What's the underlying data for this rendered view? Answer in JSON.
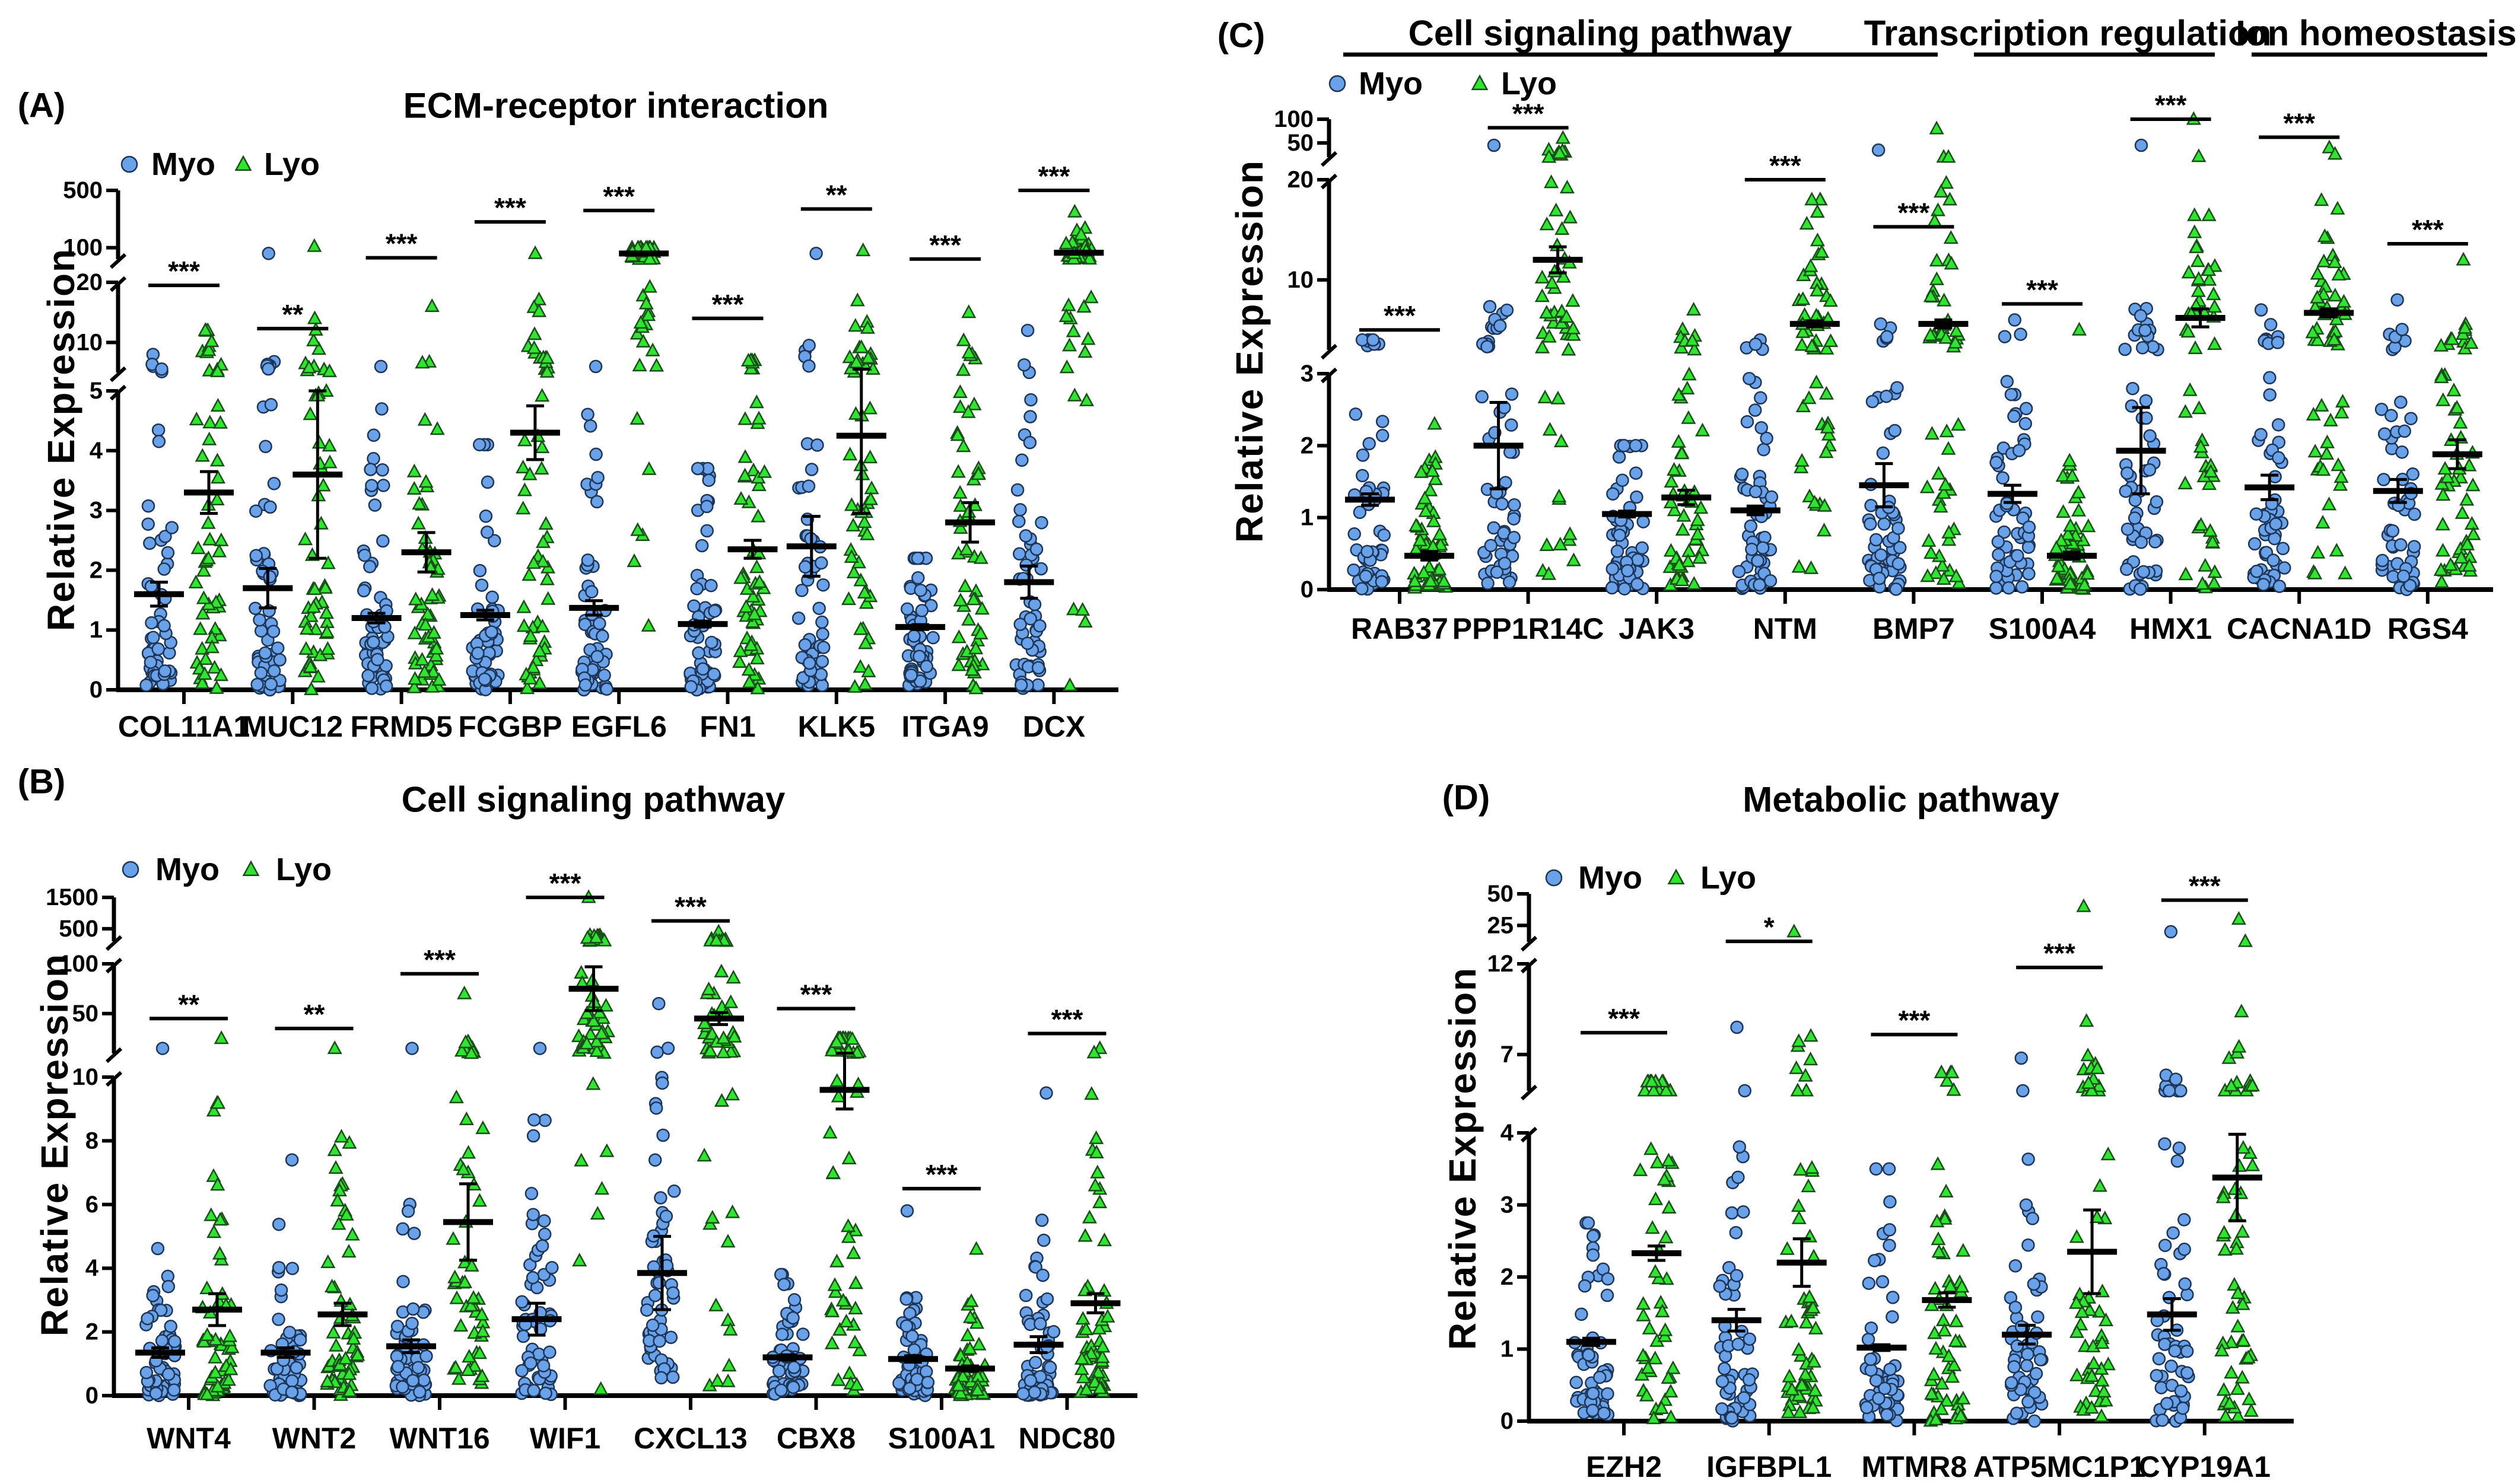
{
  "chart_data": [
    {
      "type": "scatter",
      "panel_label": "(A)",
      "title": "ECM-receptor interaction",
      "ylabel": "Relative Expression",
      "xlabel": "",
      "legend": [
        "Myo",
        "Lyo"
      ],
      "legend_placement": "top-left",
      "colors": {
        "Myo": "#6aa2ea",
        "Lyo": "#2ee62e"
      },
      "y_segments": [
        [
          0,
          5
        ],
        [
          5,
          20
        ],
        [
          20,
          500
        ]
      ],
      "y_ticks": [
        0,
        1,
        2,
        3,
        4,
        5,
        10,
        20,
        100,
        500
      ],
      "genes": [
        {
          "gene": "COL11A1",
          "sig": "***",
          "sig_level": 19.5,
          "myo": {
            "mean": 1.6,
            "sem": 0.2,
            "max": 8
          },
          "lyo": {
            "mean": 3.3,
            "sem": 0.35,
            "max": 12
          }
        },
        {
          "gene": "MUC12",
          "sig": "**",
          "sig_level": 12.3,
          "myo": {
            "mean": 1.7,
            "sem": 0.33,
            "max": 60
          },
          "lyo": {
            "mean": 3.6,
            "sem": 1.4,
            "max": 110
          }
        },
        {
          "gene": "FRMD5",
          "sig": "***",
          "sig_level": 30,
          "myo": {
            "mean": 1.2,
            "sem": 0.08,
            "max": 6
          },
          "lyo": {
            "mean": 2.3,
            "sem": 0.33,
            "max": 16
          }
        },
        {
          "gene": "FCGBP",
          "sig": "***",
          "sig_level": 280,
          "myo": {
            "mean": 1.25,
            "sem": 0.08,
            "max": 4.1
          },
          "lyo": {
            "mean": 4.3,
            "sem": 0.45,
            "max": 60
          }
        },
        {
          "gene": "EGFL6",
          "sig": "***",
          "sig_level": 360,
          "myo": {
            "mean": 1.37,
            "sem": 0.12,
            "max": 6
          },
          "lyo": {
            "mean": 60,
            "sem": 5,
            "max": 100
          }
        },
        {
          "gene": "FN1",
          "sig": "***",
          "sig_level": 14,
          "myo": {
            "mean": 1.1,
            "sem": 0.05,
            "max": 3.7
          },
          "lyo": {
            "mean": 2.35,
            "sem": 0.15,
            "max": 7
          }
        },
        {
          "gene": "KLK5",
          "sig": "**",
          "sig_level": 370,
          "myo": {
            "mean": 2.4,
            "sem": 0.5,
            "max": 60
          },
          "lyo": {
            "mean": 4.25,
            "sem": 1.3,
            "max": 80
          }
        },
        {
          "gene": "ITGA9",
          "sig": "***",
          "sig_level": 21,
          "myo": {
            "mean": 1.05,
            "sem": 0.04,
            "max": 2.2
          },
          "lyo": {
            "mean": 2.8,
            "sem": 0.33,
            "max": 15
          }
        },
        {
          "gene": "DCX",
          "sig": "***",
          "sig_level": 560,
          "myo": {
            "mean": 1.8,
            "sem": 0.27,
            "max": 12
          },
          "lyo": {
            "mean": 65,
            "sem": 8,
            "max": 350
          }
        }
      ]
    },
    {
      "type": "scatter",
      "panel_label": "(B)",
      "title": "Cell signaling pathway",
      "ylabel": "Relative Expression",
      "xlabel": "",
      "legend": [
        "Myo",
        "Lyo"
      ],
      "legend_placement": "top-left",
      "colors": {
        "Myo": "#6aa2ea",
        "Lyo": "#2ee62e"
      },
      "y_segments": [
        [
          0,
          10
        ],
        [
          10,
          100
        ],
        [
          100,
          1500
        ]
      ],
      "y_ticks": [
        0,
        2,
        4,
        6,
        8,
        10,
        50,
        100,
        500,
        1500
      ],
      "genes": [
        {
          "gene": "WNT4",
          "sig": "**",
          "sig_level": 45,
          "myo": {
            "mean": 1.35,
            "sem": 0.15,
            "max": 15
          },
          "lyo": {
            "mean": 2.7,
            "sem": 0.5,
            "max": 25
          }
        },
        {
          "gene": "WNT2",
          "sig": "**",
          "sig_level": 35,
          "myo": {
            "mean": 1.35,
            "sem": 0.15,
            "max": 7.4
          },
          "lyo": {
            "mean": 2.55,
            "sem": 0.35,
            "max": 15
          }
        },
        {
          "gene": "WNT16",
          "sig": "***",
          "sig_level": 90,
          "myo": {
            "mean": 1.55,
            "sem": 0.2,
            "max": 15
          },
          "lyo": {
            "mean": 5.45,
            "sem": 1.2,
            "max": 70
          }
        },
        {
          "gene": "WIF1",
          "sig": "***",
          "sig_level": 1550,
          "myo": {
            "mean": 2.4,
            "sem": 0.5,
            "max": 15
          },
          "lyo": {
            "mean": 75,
            "sem": 22,
            "max": 1500
          }
        },
        {
          "gene": "CXCL13",
          "sig": "***",
          "sig_level": 750,
          "myo": {
            "mean": 3.85,
            "sem": 1.15,
            "max": 60
          },
          "lyo": {
            "mean": 45,
            "sem": 6,
            "max": 400
          }
        },
        {
          "gene": "CBX8",
          "sig": "***",
          "sig_level": 55,
          "myo": {
            "mean": 1.2,
            "sem": 0.08,
            "max": 3.8
          },
          "lyo": {
            "mean": 9.6,
            "sem": 0.6,
            "max": 25
          }
        },
        {
          "gene": "S100A1",
          "sig": "***",
          "sig_level": 6.5,
          "myo": {
            "mean": 1.15,
            "sem": 0.1,
            "max": 5.8
          },
          "lyo": {
            "mean": 0.85,
            "sem": 0.08,
            "max": 4.6
          }
        },
        {
          "gene": "NDC80",
          "sig": "***",
          "sig_level": 30,
          "myo": {
            "mean": 1.6,
            "sem": 0.25,
            "max": 9.5
          },
          "lyo": {
            "mean": 2.9,
            "sem": 0.3,
            "max": 15
          }
        }
      ]
    },
    {
      "type": "scatter",
      "panel_label": "(C)",
      "title": "",
      "group_headers": [
        {
          "label": "Cell signaling pathway"
        },
        {
          "label": "Transcription regulation"
        },
        {
          "label": "Ion homeostasis"
        }
      ],
      "ylabel": "Relative Expression",
      "xlabel": "",
      "legend": [
        "Myo",
        "Lyo"
      ],
      "legend_placement": "top-left",
      "colors": {
        "Myo": "#6aa2ea",
        "Lyo": "#2ee62e"
      },
      "y_segments": [
        [
          0,
          3
        ],
        [
          3,
          20
        ],
        [
          20,
          100
        ]
      ],
      "y_ticks": [
        0,
        1,
        2,
        3,
        10,
        20,
        50,
        100
      ],
      "genes": [
        {
          "gene": "RAB37",
          "sig": "***",
          "sig_level": 5,
          "myo": {
            "mean": 1.25,
            "sem": 0.08,
            "max": 4
          },
          "lyo": {
            "mean": 0.47,
            "sem": 0.06,
            "max": 2.3
          }
        },
        {
          "gene": "PPP1R14C",
          "sig": "***",
          "sig_level": 82,
          "myo": {
            "mean": 2.0,
            "sem": 0.6,
            "max": 45
          },
          "lyo": {
            "mean": 12,
            "sem": 1.3,
            "max": 60
          }
        },
        {
          "gene": "JAK3",
          "sig": "",
          "sig_level": null,
          "myo": {
            "mean": 1.05,
            "sem": 0.04,
            "max": 2
          },
          "lyo": {
            "mean": 1.28,
            "sem": 0.1,
            "max": 7
          }
        },
        {
          "gene": "NTM",
          "sig": "***",
          "sig_level": 20,
          "myo": {
            "mean": 1.1,
            "sem": 0.06,
            "max": 4
          },
          "lyo": {
            "mean": 5.6,
            "sem": 0.3,
            "max": 18
          }
        },
        {
          "gene": "BMP7",
          "sig": "***",
          "sig_level": 15.3,
          "myo": {
            "mean": 1.45,
            "sem": 0.3,
            "max": 35
          },
          "lyo": {
            "mean": 5.6,
            "sem": 0.4,
            "max": 80
          }
        },
        {
          "gene": "S100A4",
          "sig": "***",
          "sig_level": 7.6,
          "myo": {
            "mean": 1.33,
            "sem": 0.12,
            "max": 6
          },
          "lyo": {
            "mean": 0.47,
            "sem": 0.05,
            "max": 5
          }
        },
        {
          "gene": "HMX1",
          "sig": "***",
          "sig_level": 125,
          "myo": {
            "mean": 1.93,
            "sem": 0.6,
            "max": 45
          },
          "lyo": {
            "mean": 6.2,
            "sem": 0.9,
            "max": 100
          }
        },
        {
          "gene": "CACNA1D",
          "sig": "***",
          "sig_level": 62,
          "myo": {
            "mean": 1.42,
            "sem": 0.17,
            "max": 7
          },
          "lyo": {
            "mean": 6.7,
            "sem": 0.4,
            "max": 40
          }
        },
        {
          "gene": "RGS4",
          "sig": "***",
          "sig_level": 13.6,
          "myo": {
            "mean": 1.37,
            "sem": 0.16,
            "max": 8
          },
          "lyo": {
            "mean": 1.88,
            "sem": 0.2,
            "max": 12
          }
        }
      ]
    },
    {
      "type": "scatter",
      "panel_label": "(D)",
      "title": "Metabolic pathway",
      "ylabel": "Relative Expression",
      "xlabel": "",
      "legend": [
        "Myo",
        "Lyo"
      ],
      "legend_placement": "top-left",
      "colors": {
        "Myo": "#6aa2ea",
        "Lyo": "#2ee62e"
      },
      "y_segments": [
        [
          0,
          4
        ],
        [
          5,
          12
        ],
        [
          12,
          50
        ]
      ],
      "y_ticks": [
        0,
        1,
        2,
        3,
        4,
        7,
        12,
        25,
        50
      ],
      "genes": [
        {
          "gene": "EZH2",
          "sig": "***",
          "sig_level": 8.2,
          "myo": {
            "mean": 1.1,
            "sem": 0.05,
            "max": 2.75
          },
          "lyo": {
            "mean": 2.33,
            "sem": 0.1,
            "max": 5.5
          }
        },
        {
          "gene": "IGFBPL1",
          "sig": "*",
          "sig_level": 12.4,
          "myo": {
            "mean": 1.4,
            "sem": 0.15,
            "max": 8.5
          },
          "lyo": {
            "mean": 2.2,
            "sem": 0.33,
            "max": 20
          }
        },
        {
          "gene": "MTMR8",
          "sig": "***",
          "sig_level": 8.1,
          "myo": {
            "mean": 1.02,
            "sem": 0.04,
            "max": 3.5
          },
          "lyo": {
            "mean": 1.68,
            "sem": 0.1,
            "max": 6
          }
        },
        {
          "gene": "ATP5MC1P1",
          "sig": "***",
          "sig_level": 11.8,
          "myo": {
            "mean": 1.2,
            "sem": 0.13,
            "max": 6.8
          },
          "lyo": {
            "mean": 2.35,
            "sem": 0.58,
            "max": 40
          }
        },
        {
          "gene": "CYP19A1",
          "sig": "***",
          "sig_level": 45,
          "myo": {
            "mean": 1.48,
            "sem": 0.22,
            "max": 20
          },
          "lyo": {
            "mean": 3.38,
            "sem": 0.6,
            "max": 30
          }
        }
      ]
    }
  ]
}
